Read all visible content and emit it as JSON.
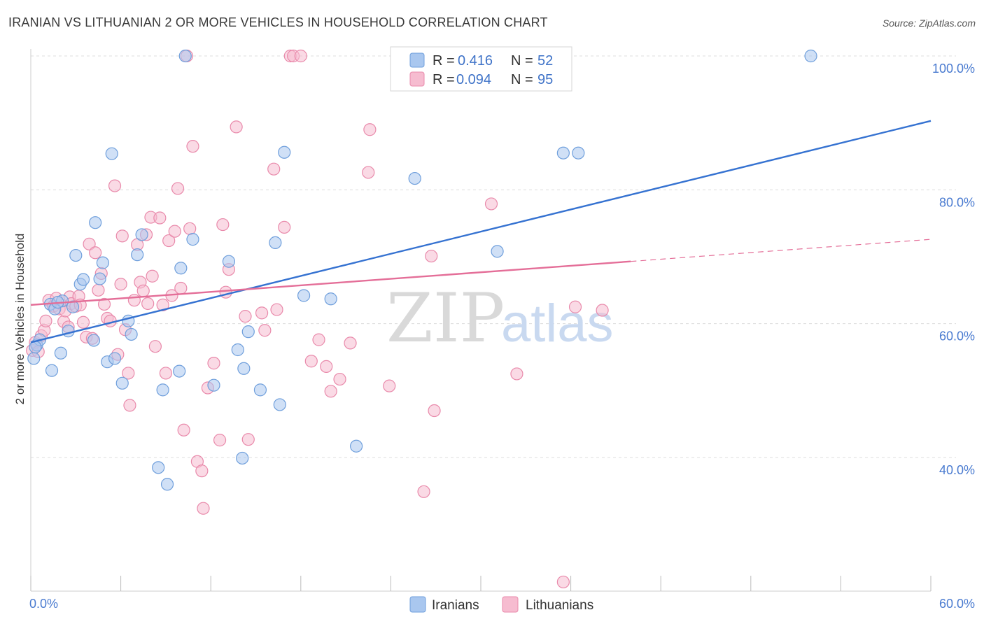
{
  "title": "IRANIAN VS LITHUANIAN 2 OR MORE VEHICLES IN HOUSEHOLD CORRELATION CHART",
  "source": "Source: ZipAtlas.com",
  "watermark": {
    "zip": "ZIP",
    "atlas": "atlas"
  },
  "colors": {
    "iranians_fill": "#a9c7ef",
    "iranians_stroke": "#6f9fdc",
    "iranians_line": "#3572d1",
    "lithuanians_fill": "#f6bcd0",
    "lithuanians_stroke": "#e98aab",
    "lithuanians_line": "#e46e98",
    "tick_text": "#4a7bd0",
    "grid": "#dcdcdc"
  },
  "legend": {
    "rows": [
      {
        "r_label": "R = ",
        "r_value": "0.416",
        "n_label": "N = ",
        "n_value": "52"
      },
      {
        "r_label": "R = ",
        "r_value": "0.094",
        "n_label": "N = ",
        "n_value": "95"
      }
    ]
  },
  "bottom_legend": {
    "iranians": "Iranians",
    "lithuanians": "Lithuanians"
  },
  "chart_data": {
    "type": "scatter",
    "title": "IRANIAN VS LITHUANIAN 2 OR MORE VEHICLES IN HOUSEHOLD CORRELATION CHART",
    "xlabel": "",
    "ylabel": "2 or more Vehicles in Household",
    "xlim": [
      0,
      60
    ],
    "ylim": [
      20,
      101
    ],
    "x_tick_labels": [
      "0.0%",
      "60.0%"
    ],
    "y_ticks": [
      40,
      60,
      80,
      100
    ],
    "y_tick_labels": [
      "40.0%",
      "60.0%",
      "80.0%",
      "100.0%"
    ],
    "grid": true,
    "legend_position": "top-center",
    "series": [
      {
        "name": "Iranians",
        "points": [
          [
            0.2,
            54.8
          ],
          [
            0.4,
            56.8
          ],
          [
            0.6,
            57.6
          ],
          [
            1.3,
            62.9
          ],
          [
            1.4,
            53.0
          ],
          [
            1.6,
            62.2
          ],
          [
            2.0,
            55.6
          ],
          [
            2.1,
            63.4
          ],
          [
            2.5,
            58.9
          ],
          [
            2.8,
            62.5
          ],
          [
            3.0,
            70.2
          ],
          [
            3.3,
            65.9
          ],
          [
            3.5,
            66.6
          ],
          [
            4.2,
            57.5
          ],
          [
            4.3,
            75.1
          ],
          [
            4.6,
            66.7
          ],
          [
            4.8,
            69.1
          ],
          [
            5.1,
            54.3
          ],
          [
            5.4,
            85.4
          ],
          [
            5.6,
            54.8
          ],
          [
            6.1,
            51.1
          ],
          [
            6.5,
            60.4
          ],
          [
            6.7,
            58.4
          ],
          [
            7.1,
            70.3
          ],
          [
            7.4,
            73.3
          ],
          [
            8.5,
            38.5
          ],
          [
            8.8,
            50.1
          ],
          [
            9.1,
            36.0
          ],
          [
            9.9,
            52.9
          ],
          [
            10.0,
            68.3
          ],
          [
            10.3,
            100.0
          ],
          [
            10.8,
            72.6
          ],
          [
            12.2,
            50.8
          ],
          [
            13.2,
            69.3
          ],
          [
            13.8,
            56.1
          ],
          [
            14.1,
            39.9
          ],
          [
            14.2,
            53.3
          ],
          [
            14.5,
            58.8
          ],
          [
            15.3,
            50.1
          ],
          [
            16.3,
            72.1
          ],
          [
            16.6,
            47.9
          ],
          [
            16.9,
            85.6
          ],
          [
            18.2,
            64.2
          ],
          [
            20.0,
            63.7
          ],
          [
            21.7,
            41.7
          ],
          [
            25.6,
            81.7
          ],
          [
            31.1,
            70.8
          ],
          [
            35.5,
            85.5
          ],
          [
            36.5,
            85.5
          ],
          [
            52.0,
            100.0
          ],
          [
            0.3,
            56.5
          ],
          [
            1.8,
            63.2
          ]
        ]
      },
      {
        "name": "Lithuanians",
        "points": [
          [
            0.1,
            56.0
          ],
          [
            0.3,
            57.2
          ],
          [
            0.5,
            55.8
          ],
          [
            0.7,
            58.2
          ],
          [
            0.9,
            59.0
          ],
          [
            1.0,
            60.4
          ],
          [
            1.2,
            63.5
          ],
          [
            1.5,
            62.6
          ],
          [
            1.7,
            63.8
          ],
          [
            1.9,
            62.2
          ],
          [
            2.2,
            60.3
          ],
          [
            2.3,
            61.9
          ],
          [
            2.5,
            59.5
          ],
          [
            2.6,
            64.0
          ],
          [
            2.7,
            63.0
          ],
          [
            3.0,
            62.6
          ],
          [
            3.2,
            64.1
          ],
          [
            3.3,
            62.8
          ],
          [
            3.5,
            60.2
          ],
          [
            3.7,
            58.0
          ],
          [
            3.9,
            71.9
          ],
          [
            4.1,
            57.8
          ],
          [
            4.3,
            70.6
          ],
          [
            4.5,
            65.0
          ],
          [
            4.7,
            67.5
          ],
          [
            4.9,
            62.9
          ],
          [
            5.1,
            60.8
          ],
          [
            5.3,
            60.4
          ],
          [
            5.6,
            80.6
          ],
          [
            5.8,
            55.4
          ],
          [
            6.0,
            65.9
          ],
          [
            6.1,
            73.1
          ],
          [
            6.3,
            59.1
          ],
          [
            6.5,
            52.6
          ],
          [
            6.6,
            47.8
          ],
          [
            6.9,
            63.5
          ],
          [
            7.1,
            71.8
          ],
          [
            7.3,
            66.2
          ],
          [
            7.5,
            64.9
          ],
          [
            7.7,
            73.3
          ],
          [
            7.8,
            63.0
          ],
          [
            8.0,
            75.9
          ],
          [
            8.1,
            67.1
          ],
          [
            8.3,
            56.6
          ],
          [
            8.6,
            75.8
          ],
          [
            8.8,
            62.8
          ],
          [
            9.0,
            52.6
          ],
          [
            9.2,
            72.4
          ],
          [
            9.4,
            64.2
          ],
          [
            9.6,
            73.8
          ],
          [
            9.8,
            80.2
          ],
          [
            10.0,
            65.3
          ],
          [
            10.2,
            44.1
          ],
          [
            10.4,
            100.0
          ],
          [
            10.6,
            74.2
          ],
          [
            10.8,
            86.5
          ],
          [
            11.1,
            39.4
          ],
          [
            11.4,
            38.0
          ],
          [
            11.5,
            32.4
          ],
          [
            11.8,
            50.4
          ],
          [
            12.2,
            54.1
          ],
          [
            12.6,
            42.6
          ],
          [
            12.8,
            74.8
          ],
          [
            13.0,
            64.7
          ],
          [
            13.2,
            68.1
          ],
          [
            13.7,
            89.4
          ],
          [
            14.3,
            61.1
          ],
          [
            14.5,
            42.7
          ],
          [
            15.4,
            61.6
          ],
          [
            15.6,
            59.0
          ],
          [
            16.2,
            83.1
          ],
          [
            16.4,
            62.1
          ],
          [
            16.9,
            74.4
          ],
          [
            17.3,
            100.0
          ],
          [
            17.5,
            100.0
          ],
          [
            18.0,
            100.0
          ],
          [
            18.7,
            54.4
          ],
          [
            19.2,
            57.6
          ],
          [
            19.7,
            53.6
          ],
          [
            20.0,
            49.9
          ],
          [
            20.6,
            51.7
          ],
          [
            21.3,
            57.1
          ],
          [
            22.5,
            82.6
          ],
          [
            22.6,
            89.0
          ],
          [
            23.9,
            50.7
          ],
          [
            24.8,
            100.0
          ],
          [
            26.2,
            34.9
          ],
          [
            26.7,
            70.1
          ],
          [
            26.9,
            47.0
          ],
          [
            30.7,
            77.9
          ],
          [
            32.0,
            100.0
          ],
          [
            32.4,
            52.5
          ],
          [
            35.5,
            21.4
          ],
          [
            36.3,
            62.5
          ],
          [
            38.1,
            62.0
          ]
        ]
      }
    ],
    "trend_lines": [
      {
        "series": "Iranians",
        "from": [
          0,
          57.2
        ],
        "to": [
          60,
          90.3
        ],
        "style": "solid"
      },
      {
        "series": "Lithuanians",
        "from": [
          0,
          62.8
        ],
        "to": [
          40,
          69.3
        ],
        "style": "solid"
      },
      {
        "series": "Lithuanians",
        "from": [
          40,
          69.3
        ],
        "to": [
          60,
          72.6
        ],
        "style": "dashed"
      }
    ]
  }
}
